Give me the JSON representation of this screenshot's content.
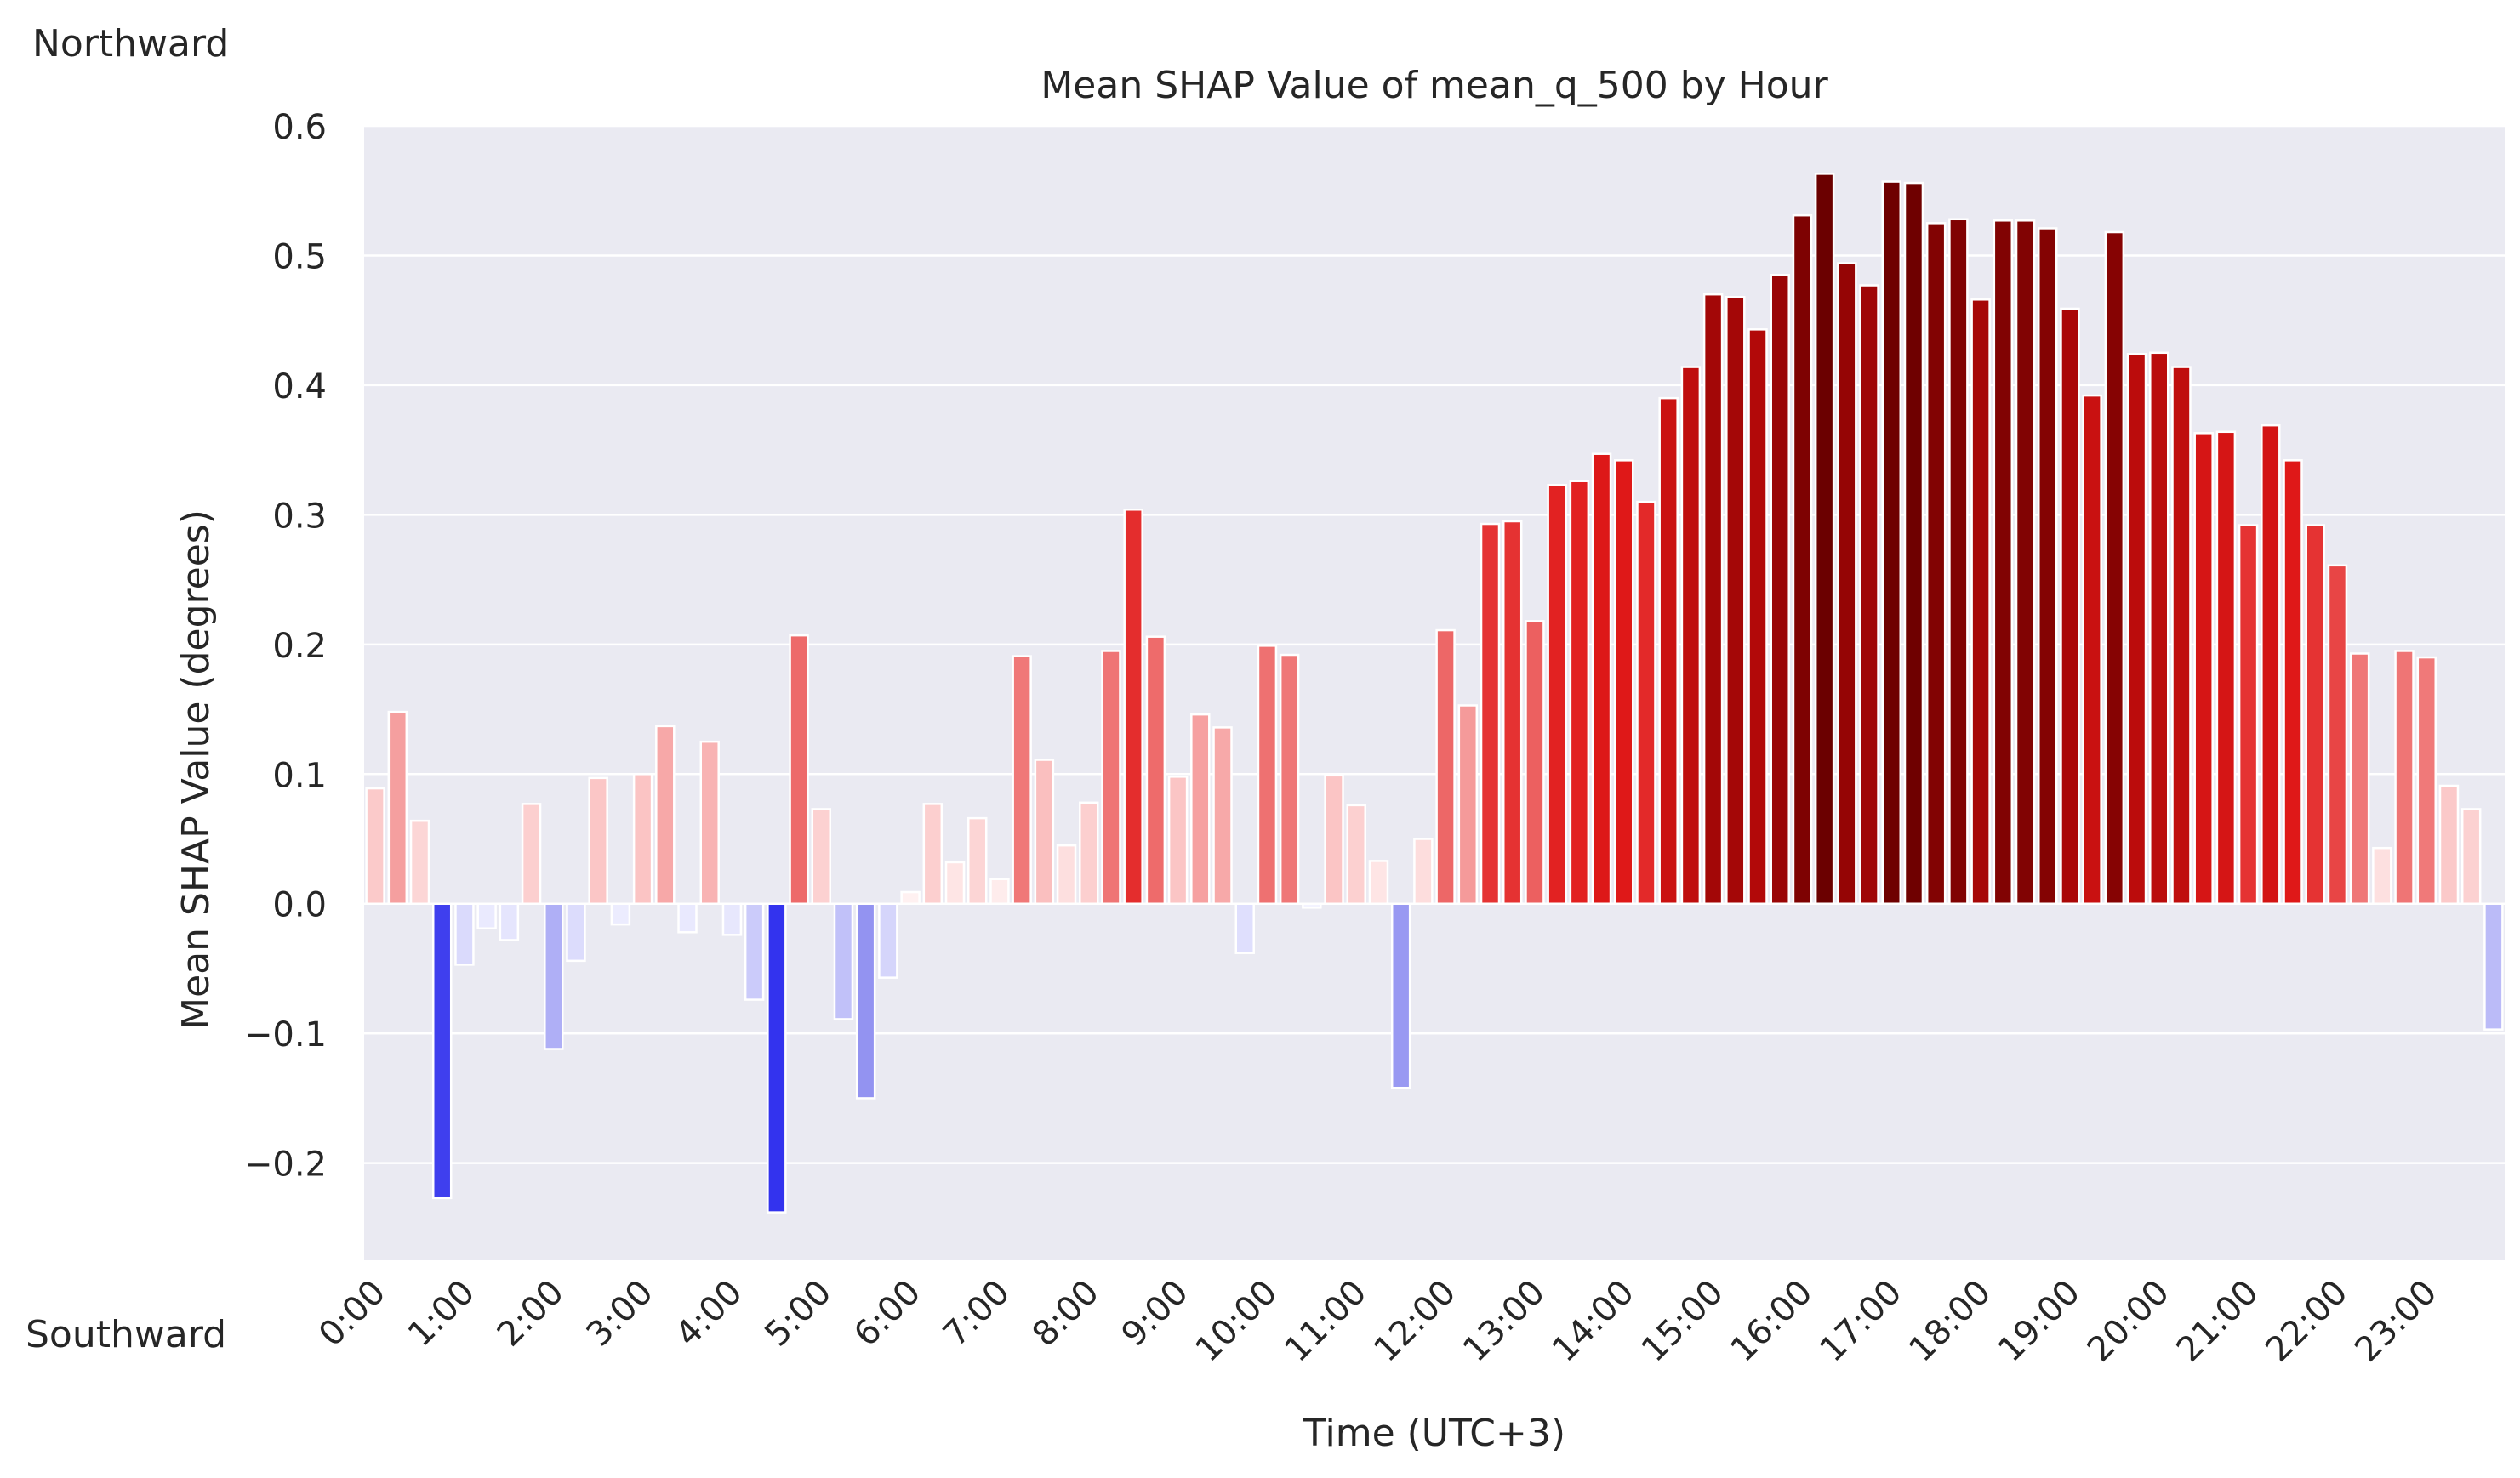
{
  "annotations": {
    "top": "Northward",
    "bottom": "Southward"
  },
  "chart_data": {
    "type": "bar",
    "title": "Mean SHAP Value of mean_q_500 by Hour",
    "xlabel": "Time (UTC+3)",
    "ylabel": "Mean SHAP Value (degrees)",
    "ylim": [
      -0.275,
      0.6
    ],
    "yticks": [
      -0.2,
      -0.1,
      0.0,
      0.1,
      0.2,
      0.3,
      0.4,
      0.5,
      0.6
    ],
    "ytick_labels": [
      "−0.2",
      "−0.1",
      "0.0",
      "0.1",
      "0.2",
      "0.3",
      "0.4",
      "0.5",
      "0.6"
    ],
    "xtick_labels": [
      "0:00",
      "1:00",
      "2:00",
      "3:00",
      "4:00",
      "5:00",
      "6:00",
      "7:00",
      "8:00",
      "9:00",
      "10:00",
      "11:00",
      "12:00",
      "13:00",
      "14:00",
      "15:00",
      "16:00",
      "17:00",
      "18:00",
      "19:00",
      "20:00",
      "21:00",
      "22:00",
      "23:00"
    ],
    "bars_per_hour": 4,
    "grid": true,
    "colors": {
      "background": "#eaeaf2",
      "grid": "#ffffff",
      "positive_max": "#6b0000",
      "negative_max": "#3333ee",
      "bar_edge": "#ffffff"
    },
    "values": [
      0.089,
      0.148,
      0.064,
      -0.227,
      -0.047,
      -0.019,
      -0.028,
      0.077,
      -0.112,
      -0.044,
      0.097,
      -0.016,
      0.1,
      0.137,
      -0.022,
      0.125,
      -0.024,
      -0.074,
      -0.238,
      0.207,
      0.073,
      -0.089,
      -0.15,
      -0.057,
      0.009,
      0.077,
      0.032,
      0.066,
      0.019,
      0.191,
      0.111,
      0.045,
      0.078,
      0.195,
      0.304,
      0.206,
      0.098,
      0.146,
      0.136,
      -0.038,
      0.199,
      0.192,
      -0.003,
      0.099,
      0.076,
      0.033,
      -0.142,
      0.05,
      0.211,
      0.153,
      0.293,
      0.295,
      0.218,
      0.323,
      0.326,
      0.347,
      0.342,
      0.31,
      0.39,
      0.414,
      0.47,
      0.468,
      0.443,
      0.485,
      0.531,
      0.563,
      0.494,
      0.477,
      0.557,
      0.556,
      0.525,
      0.528,
      0.466,
      0.527,
      0.527,
      0.521,
      0.459,
      0.392,
      0.518,
      0.424,
      0.425,
      0.414,
      0.363,
      0.364,
      0.292,
      0.369,
      0.342,
      0.292,
      0.261,
      0.193,
      0.043,
      0.195,
      0.19,
      0.091,
      0.073,
      -0.097
    ]
  }
}
